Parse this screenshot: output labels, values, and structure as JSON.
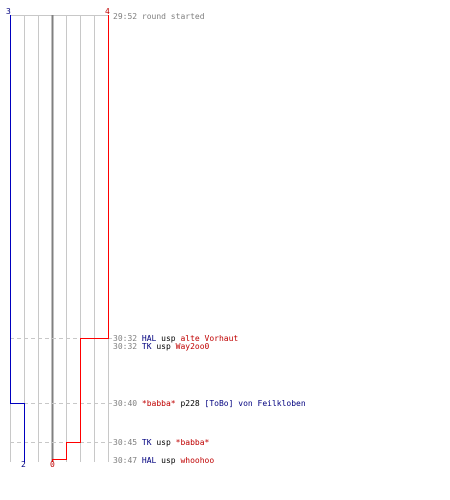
{
  "scores": {
    "blue_top": "3",
    "red_top": "4",
    "blue_bottom": "2",
    "red_bottom": "0"
  },
  "colors": {
    "blue": "#00007f",
    "red": "#bf0000",
    "time": "#7f7f7f",
    "grid": "#c8c8c8",
    "center": "#808080"
  },
  "events": [
    {
      "time": "29:52",
      "parts": [
        {
          "text": "round started",
          "color": "time"
        }
      ]
    },
    {
      "time": "30:32",
      "parts": [
        {
          "text": "HAL",
          "color": "blue"
        },
        {
          "text": " usp ",
          "color": "blk"
        },
        {
          "text": "alte Vorhaut",
          "color": "red"
        }
      ]
    },
    {
      "time": "30:32",
      "parts": [
        {
          "text": "TK",
          "color": "blue"
        },
        {
          "text": " usp ",
          "color": "blk"
        },
        {
          "text": "Way2oo0",
          "color": "red"
        }
      ]
    },
    {
      "time": "30:40",
      "parts": [
        {
          "text": "*babba*",
          "color": "red"
        },
        {
          "text": " p228 ",
          "color": "blk"
        },
        {
          "text": "[ToBo] von Feilkloben",
          "color": "blue"
        }
      ]
    },
    {
      "time": "30:45",
      "parts": [
        {
          "text": "TK",
          "color": "blue"
        },
        {
          "text": " usp ",
          "color": "blk"
        },
        {
          "text": "*babba*",
          "color": "red"
        }
      ]
    },
    {
      "time": "30:47",
      "parts": [
        {
          "text": "HAL",
          "color": "blue"
        },
        {
          "text": " usp ",
          "color": "blk"
        },
        {
          "text": "whoohoo",
          "color": "red"
        }
      ]
    }
  ]
}
